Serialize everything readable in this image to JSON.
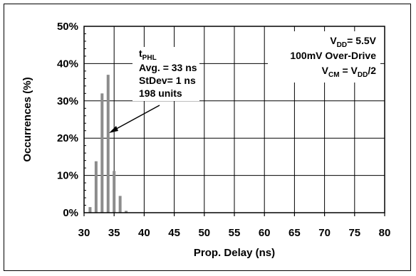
{
  "chart_data": {
    "type": "bar",
    "title": "",
    "xlabel": "Prop. Delay (ns)",
    "ylabel": "Occurrences (%)",
    "xlim": [
      30,
      80
    ],
    "ylim": [
      0,
      50
    ],
    "x_ticks": [
      "30",
      "35",
      "40",
      "45",
      "50",
      "55",
      "60",
      "65",
      "70",
      "75",
      "80"
    ],
    "y_ticks": [
      "0%",
      "10%",
      "20%",
      "30%",
      "40%",
      "50%"
    ],
    "grid": true,
    "series": [
      {
        "x": [
          31,
          31.5,
          32,
          32.5,
          33,
          33.5,
          34,
          34.5,
          35,
          35.5,
          36,
          36.5,
          37
        ],
        "values": [
          1.5,
          0,
          13.8,
          0,
          32,
          0,
          37,
          0,
          11.2,
          0,
          4.5,
          0,
          0.5
        ]
      }
    ],
    "bar_color": "#8c8c8c",
    "annotation": {
      "t_main": "t",
      "t_sub": "PHL",
      "lines": [
        "Avg. = 33 ns",
        "StDev= 1 ns",
        "198 units"
      ]
    },
    "conditions": {
      "vdd_main": "V",
      "vdd_sub": "DD",
      "vdd_value": "= 5.5V",
      "overdrive": "100mV Over-Drive",
      "vcm_main": "V",
      "vcm_sub": "CM",
      "vcm_eq": " = V",
      "vcm_sub2": "DD",
      "vcm_tail": "/2"
    }
  }
}
